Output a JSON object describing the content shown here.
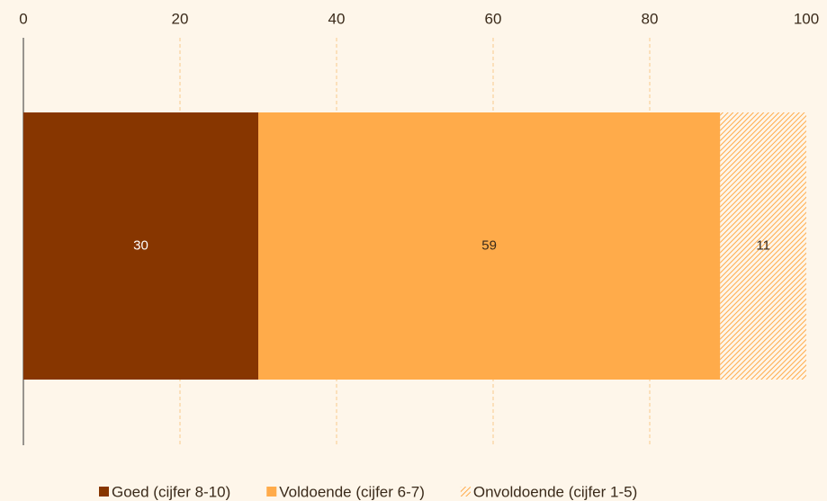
{
  "chart_data": {
    "type": "bar",
    "orientation": "horizontal",
    "stacked": true,
    "categories": [
      null
    ],
    "series": [
      {
        "name": "Goed (cijfer 8-10)",
        "color": "#873600",
        "values": [
          30
        ]
      },
      {
        "name": "Voldoende (cijfer 6-7)",
        "color": "#ffab4a",
        "values": [
          59
        ]
      },
      {
        "name": "Onvoldoende (cijfer 1-5)",
        "color": "#ffab4a",
        "pattern": "hatch",
        "values": [
          11
        ]
      }
    ],
    "xlim": [
      0,
      100
    ],
    "xticks": [
      0,
      20,
      40,
      60,
      80,
      100
    ],
    "grid": true,
    "legend": "bottom"
  }
}
